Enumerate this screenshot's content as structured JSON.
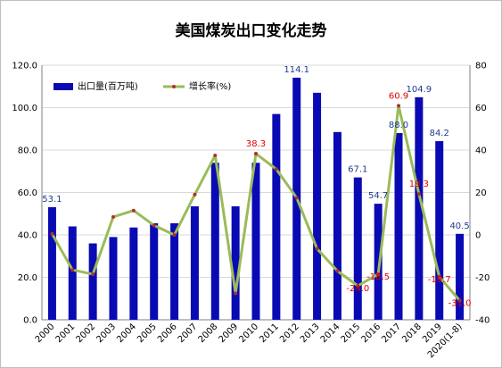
{
  "chart_data": {
    "type": "bar+line",
    "title": "美国煤炭出口变化走势",
    "categories": [
      "2000",
      "2001",
      "2002",
      "2003",
      "2004",
      "2005",
      "2006",
      "2007",
      "2008",
      "2009",
      "2010",
      "2011",
      "2012",
      "2013",
      "2014",
      "2015",
      "2016",
      "2017",
      "2018",
      "2019",
      "2020(1-8)"
    ],
    "series": [
      {
        "name": "出口量(百万吨)",
        "type": "bar",
        "axis": "left",
        "color": "#0a0ab4",
        "values": [
          53.1,
          44.0,
          36.0,
          39.0,
          43.5,
          45.5,
          45.5,
          53.5,
          74.0,
          53.5,
          74.0,
          97.0,
          114.1,
          107.0,
          88.5,
          67.1,
          54.7,
          88.0,
          104.9,
          84.2,
          40.5
        ]
      },
      {
        "name": "增长率(%)",
        "type": "line",
        "axis": "right",
        "color": "#9bbb59",
        "values": [
          0.5,
          -16.5,
          -18.5,
          8.5,
          11.5,
          4.5,
          0,
          19.0,
          37.5,
          -27.5,
          38.3,
          31.0,
          17.5,
          -6.5,
          -17.0,
          -24.0,
          -18.5,
          60.9,
          19.3,
          -19.7,
          -31.0
        ]
      }
    ],
    "bar_labels": [
      {
        "index": 0,
        "text": "53.1"
      },
      {
        "index": 12,
        "text": "114.1"
      },
      {
        "index": 15,
        "text": "67.1"
      },
      {
        "index": 16,
        "text": "54.7"
      },
      {
        "index": 17,
        "text": "88.0"
      },
      {
        "index": 18,
        "text": "104.9"
      },
      {
        "index": 19,
        "text": "84.2"
      },
      {
        "index": 20,
        "text": "40.5"
      }
    ],
    "line_labels": [
      {
        "index": 10,
        "text": "38.3"
      },
      {
        "index": 15,
        "text": "-24.0"
      },
      {
        "index": 16,
        "text": "-18.5"
      },
      {
        "index": 17,
        "text": "60.9"
      },
      {
        "index": 18,
        "text": "19.3"
      },
      {
        "index": 19,
        "text": "-19.7"
      },
      {
        "index": 20,
        "text": "-31.0"
      }
    ],
    "left_axis": {
      "min": 0,
      "max": 120,
      "step": 20,
      "tick_labels": [
        "0.0",
        "20.0",
        "40.0",
        "60.0",
        "80.0",
        "100.0",
        "120.0"
      ]
    },
    "right_axis": {
      "min": -40,
      "max": 80,
      "step": 20,
      "tick_labels": [
        "-40",
        "-20",
        "0",
        "20",
        "40",
        "60",
        "80"
      ]
    },
    "legend_position": "top-left",
    "grid": true,
    "bar_label_color": "#1f3a8f",
    "line_label_color": "#e00000",
    "line_marker_color": "#b0302a"
  }
}
